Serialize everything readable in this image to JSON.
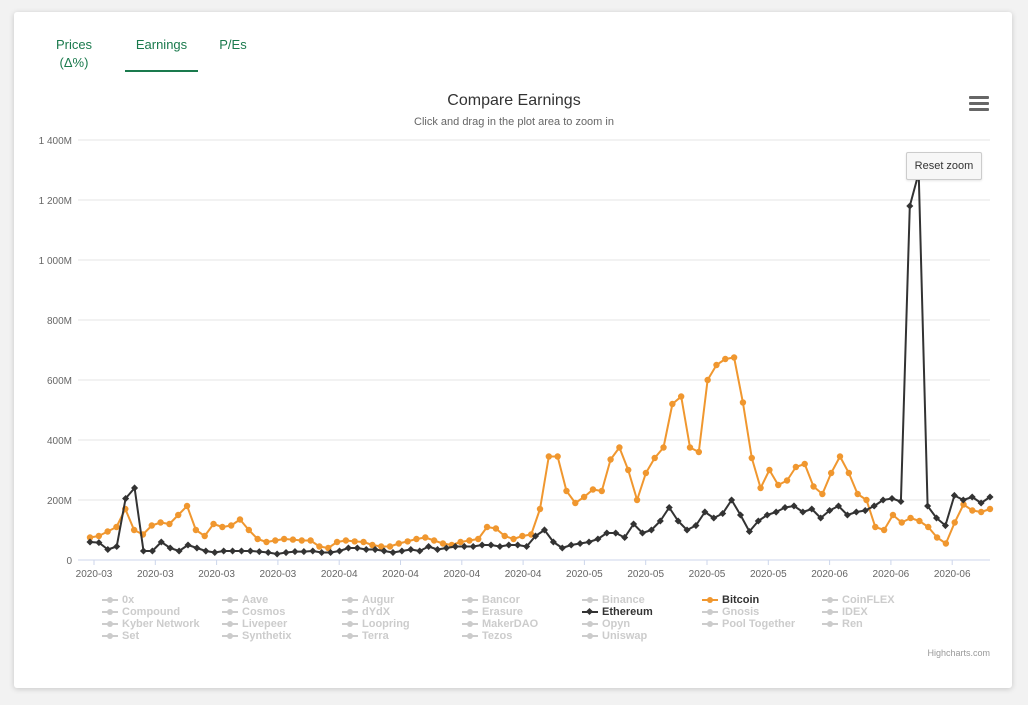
{
  "tabs": [
    {
      "label": "Prices (Δ%)",
      "active": false
    },
    {
      "label": "Earnings",
      "active": true
    },
    {
      "label": "P/Es",
      "active": false
    }
  ],
  "reset_zoom_label": "Reset zoom",
  "menu_icon": "hamburger-menu-icon",
  "credits": "Highcharts.com",
  "colors": {
    "accent": "#1a7a4d",
    "bitcoin": "#f0972f",
    "ethereum": "#333333",
    "hidden": "#cccccc"
  },
  "legend": [
    [
      "0x",
      "Aave",
      "Augur",
      "Bancor",
      "Binance",
      "Bitcoin",
      "CoinFLEX"
    ],
    [
      "Compound",
      "Cosmos",
      "dYdX",
      "Erasure",
      "Ethereum",
      "Gnosis",
      "IDEX"
    ],
    [
      "Kyber Network",
      "Livepeer",
      "Loopring",
      "MakerDAO",
      "Opyn",
      "Pool Together",
      "Ren"
    ],
    [
      "Set",
      "Synthetix",
      "Terra",
      "Tezos",
      "Uniswap"
    ]
  ],
  "legend_active": [
    "Bitcoin",
    "Ethereum"
  ],
  "chart_data": {
    "type": "line",
    "title": "Compare Earnings",
    "subtitle": "Click and drag in the plot area to zoom in",
    "xlabel": "",
    "ylabel": "",
    "ylim": [
      0,
      1400
    ],
    "y_ticks": [
      "0",
      "200M",
      "400M",
      "600M",
      "800M",
      "1 000M",
      "1 200M",
      "1 400M"
    ],
    "x_ticks": [
      "2020-03",
      "2020-03",
      "2020-03",
      "2020-03",
      "2020-04",
      "2020-04",
      "2020-04",
      "2020-04",
      "2020-05",
      "2020-05",
      "2020-05",
      "2020-05",
      "2020-06",
      "2020-06",
      "2020-06"
    ],
    "grid": true,
    "legend_position": "bottom",
    "series": [
      {
        "name": "Bitcoin",
        "color": "#f0972f",
        "values": [
          75,
          80,
          95,
          110,
          170,
          100,
          85,
          115,
          125,
          120,
          150,
          180,
          100,
          80,
          120,
          110,
          115,
          135,
          100,
          70,
          60,
          65,
          70,
          68,
          65,
          65,
          45,
          40,
          60,
          65,
          62,
          60,
          50,
          45,
          45,
          55,
          62,
          70,
          75,
          65,
          55,
          50,
          60,
          65,
          70,
          110,
          105,
          80,
          70,
          80,
          85,
          170,
          345,
          345,
          230,
          190,
          210,
          235,
          230,
          335,
          375,
          300,
          200,
          290,
          340,
          375,
          520,
          545,
          375,
          360,
          600,
          650,
          670,
          675,
          525,
          340,
          240,
          300,
          250,
          265,
          310,
          320,
          245,
          220,
          290,
          345,
          290,
          220,
          200,
          110,
          100,
          150,
          125,
          140,
          130,
          110,
          75,
          55,
          125,
          185,
          165,
          160,
          170
        ]
      },
      {
        "name": "Ethereum",
        "color": "#333333",
        "values": [
          60,
          58,
          35,
          45,
          205,
          240,
          30,
          30,
          60,
          40,
          30,
          50,
          40,
          30,
          25,
          30,
          30,
          30,
          30,
          28,
          25,
          20,
          25,
          28,
          28,
          30,
          25,
          25,
          30,
          40,
          40,
          35,
          35,
          30,
          25,
          30,
          35,
          30,
          45,
          35,
          40,
          45,
          45,
          45,
          50,
          50,
          45,
          50,
          50,
          45,
          80,
          100,
          60,
          40,
          50,
          55,
          60,
          70,
          90,
          90,
          75,
          120,
          90,
          100,
          130,
          175,
          130,
          100,
          115,
          160,
          140,
          155,
          200,
          150,
          95,
          130,
          150,
          160,
          175,
          180,
          160,
          170,
          140,
          165,
          180,
          150,
          160,
          165,
          180,
          200,
          205,
          195,
          1180,
          1290,
          180,
          140,
          115,
          215,
          200,
          210,
          190,
          210
        ]
      }
    ]
  }
}
